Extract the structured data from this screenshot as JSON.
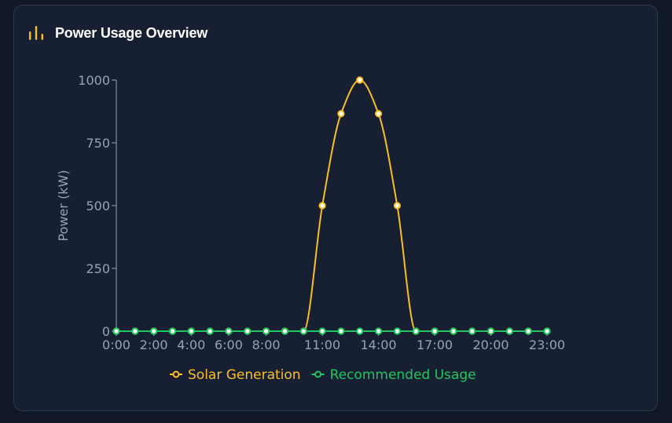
{
  "header": {
    "title": "Power Usage Overview",
    "icon": "bar-chart-icon"
  },
  "colors": {
    "solar": "#fbbf24",
    "recommended": "#22c55e",
    "axis": "#94a3b8",
    "background": "#172033"
  },
  "chart_data": {
    "type": "line",
    "title": "",
    "xlabel": "",
    "ylabel": "Power (kW)",
    "ylim": [
      0,
      1000
    ],
    "yticks": [
      0,
      250,
      500,
      750,
      1000
    ],
    "x": [
      "0:00",
      "1:00",
      "2:00",
      "3:00",
      "4:00",
      "5:00",
      "6:00",
      "7:00",
      "8:00",
      "9:00",
      "10:00",
      "11:00",
      "12:00",
      "13:00",
      "14:00",
      "15:00",
      "16:00",
      "17:00",
      "18:00",
      "19:00",
      "20:00",
      "21:00",
      "22:00",
      "23:00"
    ],
    "xtick_labels": [
      "0:00",
      "2:00",
      "4:00",
      "6:00",
      "8:00",
      "11:00",
      "14:00",
      "17:00",
      "20:00",
      "23:00"
    ],
    "series": [
      {
        "name": "Solar Generation",
        "color": "#fbbf24",
        "values": [
          0,
          0,
          0,
          0,
          0,
          0,
          0,
          0,
          0,
          0,
          0,
          500,
          866,
          1000,
          866,
          500,
          0,
          0,
          0,
          0,
          0,
          0,
          0,
          0
        ]
      },
      {
        "name": "Recommended Usage",
        "color": "#22c55e",
        "values": [
          0,
          0,
          0,
          0,
          0,
          0,
          0,
          0,
          0,
          0,
          0,
          0,
          0,
          0,
          0,
          0,
          0,
          0,
          0,
          0,
          0,
          0,
          0,
          0
        ]
      }
    ],
    "legend_position": "bottom",
    "grid": false
  }
}
